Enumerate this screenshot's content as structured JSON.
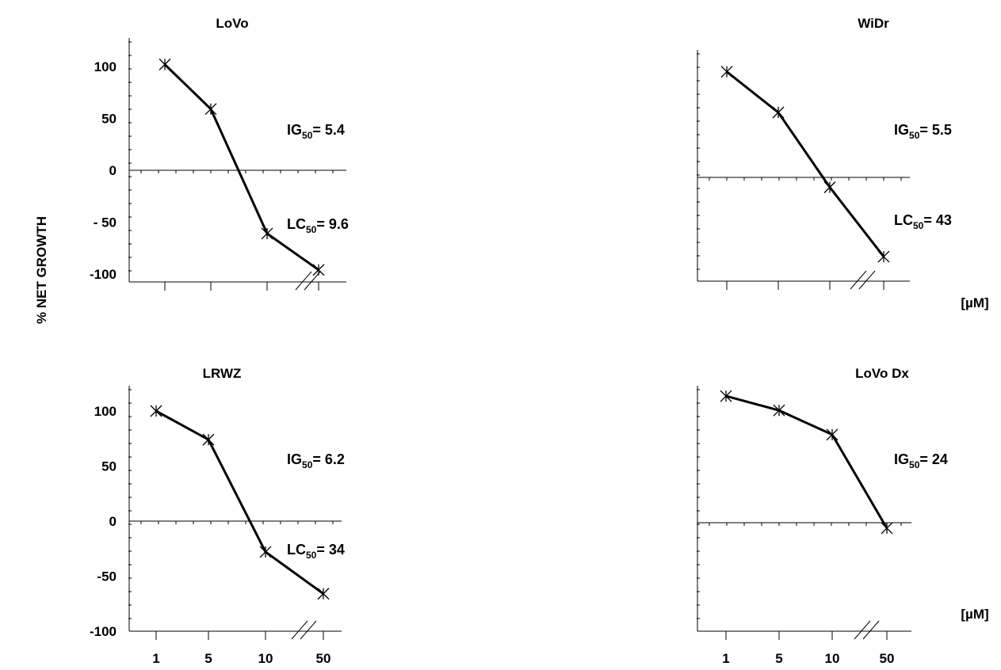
{
  "figure": {
    "ylabel": "% NET GROWTH",
    "unit_label": "[µM]",
    "break_mark": "//"
  },
  "chart_data": [
    {
      "type": "line",
      "title": "LoVo",
      "xlabel": "",
      "ylabel": "% NET GROWTH",
      "categories": [
        "1",
        "5",
        "10",
        "50"
      ],
      "x_tick_labels_shown": false,
      "y_tick_labels": [
        "100",
        "50",
        "0",
        "- 50",
        "-100"
      ],
      "ylim": [
        -100,
        120
      ],
      "series": [
        {
          "values": [
            102,
            59,
            -61,
            -96
          ]
        }
      ],
      "annotations": [
        {
          "sym": "IG",
          "sub": "50",
          "text": "= 5.4"
        },
        {
          "sym": "LC",
          "sub": "50",
          "text": "= 9.6"
        }
      ]
    },
    {
      "type": "line",
      "title": "WiDr",
      "xlabel": "",
      "ylabel": "% NET GROWTH",
      "categories": [
        "1",
        "5",
        "10",
        "50"
      ],
      "x_tick_labels_shown": false,
      "y_tick_labels": [],
      "ylim": [
        -100,
        120
      ],
      "series": [
        {
          "values": [
            96,
            59,
            -9,
            -72
          ]
        }
      ],
      "annotations": [
        {
          "sym": "IG",
          "sub": "50",
          "text": "= 5.5"
        },
        {
          "sym": "LC",
          "sub": "50",
          "text": "= 43"
        }
      ]
    },
    {
      "type": "line",
      "title": "LRWZ",
      "xlabel": "",
      "ylabel": "% NET GROWTH",
      "categories": [
        "1",
        "5",
        "10",
        "50"
      ],
      "x_tick_labels_shown": true,
      "y_tick_labels": [
        "100",
        "50",
        "0",
        "-50",
        "-100"
      ],
      "ylim": [
        -100,
        120
      ],
      "series": [
        {
          "values": [
            100,
            74,
            -28,
            -66
          ]
        }
      ],
      "annotations": [
        {
          "sym": "IG",
          "sub": "50",
          "text": "= 6.2"
        },
        {
          "sym": "LC",
          "sub": "50",
          "text": "= 34"
        }
      ]
    },
    {
      "type": "line",
      "title": "LoVo Dx",
      "xlabel": "",
      "ylabel": "% NET GROWTH",
      "categories": [
        "1",
        "5",
        "10",
        "50"
      ],
      "x_tick_labels_shown": true,
      "y_tick_labels": [],
      "ylim": [
        -100,
        120
      ],
      "series": [
        {
          "values": [
            115,
            102,
            80,
            -5
          ]
        }
      ],
      "annotations": [
        {
          "sym": "IG",
          "sub": "50",
          "text": "= 24"
        }
      ]
    }
  ]
}
